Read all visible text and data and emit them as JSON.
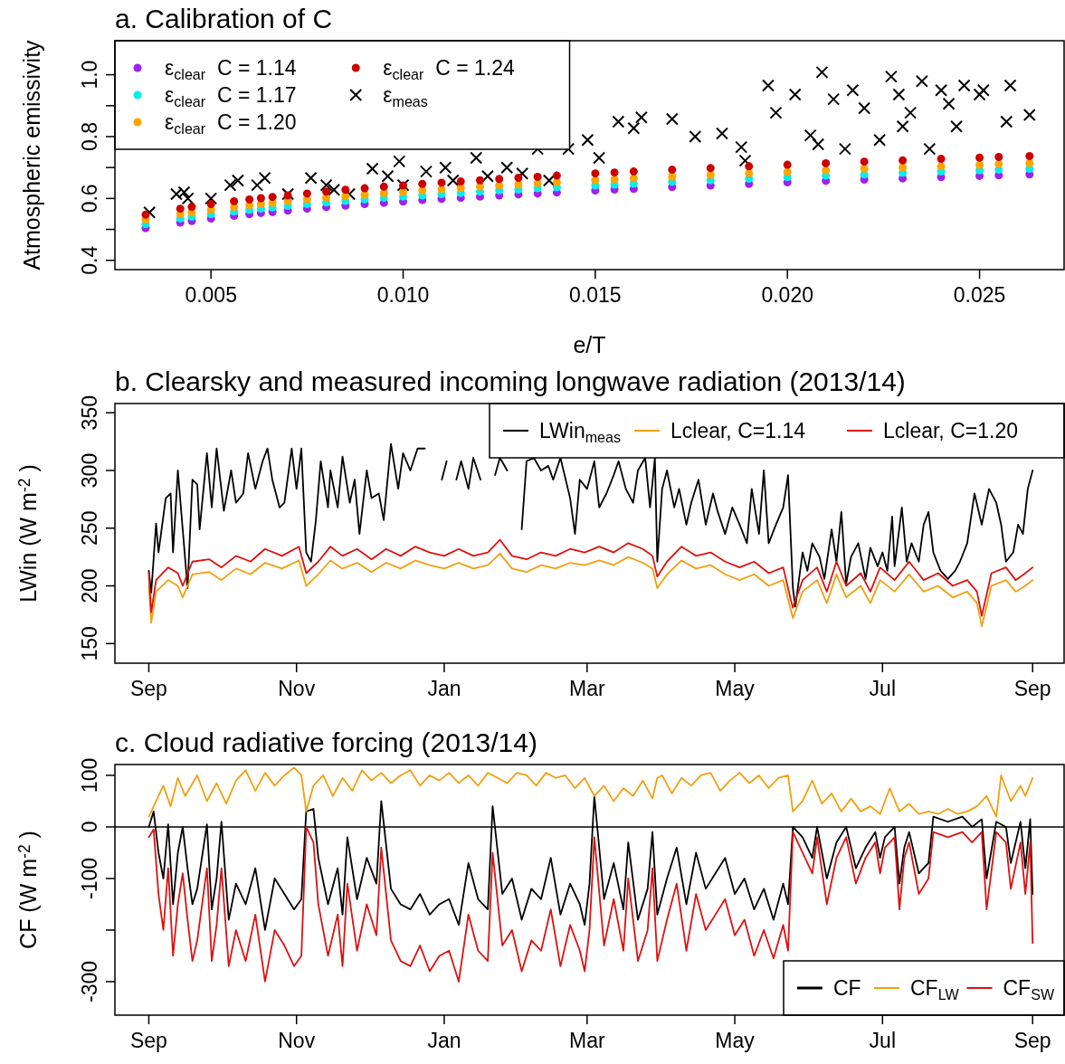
{
  "chart_data": [
    {
      "type": "scatter",
      "title": "a. Calibration of C",
      "xlabel": "e/T",
      "ylabel": "Atmospheric emissivity",
      "xlim": [
        0.0025,
        0.0272
      ],
      "ylim": [
        0.37,
        1.11
      ],
      "xticks": [
        0.005,
        {
          "value": 0.01,
          "label": "0.010"
        },
        0.015,
        {
          "value": 0.02,
          "label": "0.020"
        },
        0.025
      ],
      "yticks": [
        0.4,
        {
          "value": 0.5,
          "label": null
        },
        0.6,
        {
          "value": 0.7,
          "label": null
        },
        0.8,
        {
          "value": 0.9,
          "label": null
        },
        {
          "value": 1,
          "label": "1.0"
        }
      ],
      "legend": "top left",
      "marker": "circle",
      "x": [
        0.0033,
        0.0042,
        0.0045,
        0.005,
        0.0056,
        0.006,
        0.0063,
        0.0066,
        0.007,
        0.0075,
        0.008,
        0.0085,
        0.009,
        0.0095,
        0.01,
        0.0105,
        0.011,
        0.0115,
        0.012,
        0.0125,
        0.013,
        0.0135,
        0.014,
        0.015,
        0.0155,
        0.016,
        0.017,
        0.018,
        0.019,
        0.02,
        0.021,
        0.022,
        0.023,
        0.024,
        0.025,
        0.0255,
        0.0263
      ],
      "series": [
        {
          "name": "ε$_{clear}$  C = 1.14",
          "color": "#a020f0",
          "values": [
            0.504,
            0.522,
            0.527,
            0.535,
            0.544,
            0.549,
            0.553,
            0.556,
            0.561,
            0.567,
            0.572,
            0.577,
            0.582,
            0.586,
            0.59,
            0.595,
            0.599,
            0.602,
            0.606,
            0.61,
            0.613,
            0.616,
            0.619,
            0.626,
            0.629,
            0.631,
            0.637,
            0.642,
            0.647,
            0.652,
            0.657,
            0.661,
            0.665,
            0.669,
            0.673,
            0.675,
            0.678
          ]
        },
        {
          "name": "ε$_{clear}$  C = 1.17",
          "color": "#00eeee",
          "values": [
            0.517,
            0.535,
            0.541,
            0.549,
            0.558,
            0.563,
            0.567,
            0.571,
            0.576,
            0.582,
            0.587,
            0.592,
            0.597,
            0.602,
            0.606,
            0.61,
            0.614,
            0.618,
            0.622,
            0.626,
            0.629,
            0.633,
            0.636,
            0.642,
            0.645,
            0.648,
            0.654,
            0.659,
            0.664,
            0.669,
            0.674,
            0.678,
            0.683,
            0.687,
            0.691,
            0.693,
            0.696
          ]
        },
        {
          "name": "ε$_{clear}$  C = 1.20",
          "color": "#ffa500",
          "values": [
            0.531,
            0.549,
            0.555,
            0.563,
            0.572,
            0.578,
            0.582,
            0.586,
            0.591,
            0.597,
            0.602,
            0.607,
            0.612,
            0.617,
            0.621,
            0.626,
            0.63,
            0.634,
            0.638,
            0.642,
            0.645,
            0.649,
            0.652,
            0.659,
            0.662,
            0.665,
            0.67,
            0.676,
            0.681,
            0.686,
            0.691,
            0.696,
            0.7,
            0.704,
            0.708,
            0.711,
            0.714
          ]
        },
        {
          "name": "ε$_{clear}$  C = 1.24",
          "color": "#cc0000",
          "values": [
            0.548,
            0.567,
            0.573,
            0.582,
            0.591,
            0.597,
            0.601,
            0.605,
            0.61,
            0.616,
            0.622,
            0.628,
            0.633,
            0.638,
            0.642,
            0.647,
            0.651,
            0.655,
            0.659,
            0.663,
            0.667,
            0.67,
            0.674,
            0.681,
            0.684,
            0.687,
            0.693,
            0.698,
            0.704,
            0.709,
            0.714,
            0.719,
            0.723,
            0.728,
            0.732,
            0.734,
            0.737
          ]
        },
        {
          "name": "ε$_{meas}$",
          "color": "#000000",
          "marker": "cross",
          "x": [
            0.0034,
            0.0041,
            0.0043,
            0.0044,
            0.005,
            0.0055,
            0.0057,
            0.0062,
            0.0064,
            0.007,
            0.0076,
            0.008,
            0.0082,
            0.0086,
            0.0092,
            0.0096,
            0.0099,
            0.01,
            0.0106,
            0.0111,
            0.0113,
            0.0119,
            0.0122,
            0.0127,
            0.0131,
            0.0135,
            0.0138,
            0.0143,
            0.0148,
            0.0151,
            0.0156,
            0.016,
            0.0162,
            0.017,
            0.0176,
            0.0183,
            0.0188,
            0.0189,
            0.0195,
            0.0197,
            0.0202,
            0.0206,
            0.0208,
            0.0209,
            0.0212,
            0.0215,
            0.0217,
            0.022,
            0.0224,
            0.0227,
            0.0229,
            0.023,
            0.0232,
            0.0235,
            0.0237,
            0.024,
            0.0242,
            0.0244,
            0.0246,
            0.025,
            0.0251,
            0.0257,
            0.0258,
            0.0263
          ],
          "values": [
            0.555,
            0.614,
            0.62,
            0.6,
            0.6,
            0.643,
            0.658,
            0.643,
            0.666,
            0.614,
            0.666,
            0.643,
            0.628,
            0.614,
            0.696,
            0.672,
            0.72,
            0.643,
            0.687,
            0.7,
            0.658,
            0.731,
            0.672,
            0.7,
            0.681,
            0.76,
            0.658,
            0.76,
            0.789,
            0.731,
            0.848,
            0.827,
            0.862,
            0.857,
            0.8,
            0.81,
            0.766,
            0.722,
            0.965,
            0.877,
            0.936,
            0.804,
            0.775,
            1.008,
            0.921,
            0.76,
            0.95,
            0.892,
            0.789,
            0.994,
            0.936,
            0.833,
            0.877,
            0.979,
            0.76,
            0.95,
            0.906,
            0.833,
            0.965,
            0.936,
            0.95,
            0.848,
            0.965,
            0.87
          ]
        }
      ]
    },
    {
      "type": "line",
      "title": "b. Clearsky and measured incoming longwave radiation (2013/14)",
      "ylabel": "LWin (W m$^{-2}$ )",
      "xlim": [
        "2013-08-18",
        "2014-09-14"
      ],
      "ylim": [
        133,
        358
      ],
      "xticks": [
        {
          "value": "2013-09-01",
          "label": "Sep"
        },
        {
          "value": "2013-11-01",
          "label": "Nov"
        },
        {
          "value": "2014-01-01",
          "label": "Jan"
        },
        {
          "value": "2014-03-01",
          "label": "Mar"
        },
        {
          "value": "2014-05-01",
          "label": "May"
        },
        {
          "value": "2014-07-01",
          "label": "Jul"
        },
        {
          "value": "2014-09-01",
          "label": "Sep"
        }
      ],
      "yticks": [
        150,
        200,
        250,
        300,
        350
      ],
      "legend": "top right",
      "marker": "none",
      "series": [
        {
          "name": "LWin$_{meas}$",
          "color": "#000000",
          "x": [
            "2013-09-01",
            "2013-09-02",
            "2013-09-04",
            "2013-09-05",
            "2013-09-08",
            "2013-09-10",
            "2013-09-11",
            "2013-09-13",
            "2013-09-15",
            "2013-09-17",
            "2013-09-19",
            "2013-09-21",
            "2013-09-22",
            "2013-09-25",
            "2013-09-27",
            "2013-09-29",
            "2013-10-02",
            "2013-10-05",
            "2013-10-07",
            "2013-10-10",
            "2013-10-12",
            "2013-10-15",
            "2013-10-18",
            "2013-10-20",
            "2013-10-22",
            "2013-10-25",
            "2013-10-27",
            "2013-10-30",
            "2013-11-01",
            "2013-11-03",
            "2013-11-05",
            "2013-11-07",
            "2013-11-09",
            "2013-11-11",
            "2013-11-14",
            "2013-11-15",
            "2013-11-18",
            "2013-11-20",
            "2013-11-23",
            "2013-11-25",
            "2013-11-27",
            "2013-11-30",
            "2013-12-02",
            "2013-12-05",
            "2013-12-07",
            "2013-12-10",
            "2013-12-13",
            "2013-12-15",
            "2013-12-18",
            "2013-12-21",
            "2013-12-24",
            "2013-12-27",
            "2013-12-30",
            "2013-12-31",
            "2014-01-02",
            "2014-01-04",
            "2014-01-06",
            "2014-01-08",
            "2014-01-11",
            "2014-01-13",
            "2014-01-16",
            "2014-01-19",
            "2014-01-22",
            "2014-01-24",
            "2014-01-27",
            "2014-01-30",
            "2014-02-02",
            "2014-02-04",
            "2014-02-07",
            "2014-02-10",
            "2014-02-13",
            "2014-02-15",
            "2014-02-18",
            "2014-02-22",
            "2014-02-24",
            "2014-02-26",
            "2014-03-01",
            "2014-03-04",
            "2014-03-06",
            "2014-03-09",
            "2014-03-12",
            "2014-03-14",
            "2014-03-17",
            "2014-03-20",
            "2014-03-22",
            "2014-03-25",
            "2014-03-27",
            "2014-03-29",
            "2014-03-30",
            "2014-04-01",
            "2014-04-03",
            "2014-04-06",
            "2014-04-08",
            "2014-04-11",
            "2014-04-13",
            "2014-04-16",
            "2014-04-19",
            "2014-04-22",
            "2014-04-24",
            "2014-04-27",
            "2014-04-30",
            "2014-05-03",
            "2014-05-06",
            "2014-05-08",
            "2014-05-11",
            "2014-05-13",
            "2014-05-15",
            "2014-05-18",
            "2014-05-21",
            "2014-05-23",
            "2014-05-25",
            "2014-05-26",
            "2014-05-29",
            "2014-05-31",
            "2014-06-02",
            "2014-06-05",
            "2014-06-07",
            "2014-06-10",
            "2014-06-12",
            "2014-06-14",
            "2014-06-16",
            "2014-06-18",
            "2014-06-21",
            "2014-06-24",
            "2014-06-26",
            "2014-06-29",
            "2014-07-01",
            "2014-07-03",
            "2014-07-05",
            "2014-07-06",
            "2014-07-09",
            "2014-07-11",
            "2014-07-13",
            "2014-07-16",
            "2014-07-18",
            "2014-07-20",
            "2014-07-22",
            "2014-07-25",
            "2014-07-28",
            "2014-07-31",
            "2014-08-02",
            "2014-08-05",
            "2014-08-08",
            "2014-08-11",
            "2014-08-14",
            "2014-08-17",
            "2014-08-19",
            "2014-08-21",
            "2014-08-24",
            "2014-08-26",
            "2014-08-28",
            "2014-08-30",
            "2014-09-01"
          ],
          "values": [
            213,
            194,
            254,
            229,
            276,
            280,
            229,
            300,
            249,
            198,
            292,
            288,
            249,
            315,
            268,
            319,
            265,
            300,
            272,
            280,
            315,
            284,
            308,
            319,
            292,
            268,
            272,
            319,
            284,
            319,
            229,
            221,
            257,
            308,
            268,
            300,
            268,
            312,
            272,
            292,
            245,
            300,
            276,
            280,
            257,
            323,
            284,
            315,
            300,
            319,
            319,
            null,
            null,
            292,
            308,
            null,
            292,
            308,
            284,
            311,
            292,
            null,
            296,
            311,
            300,
            null,
            249,
            308,
            311,
            300,
            304,
            292,
            311,
            276,
            245,
            292,
            284,
            308,
            268,
            280,
            296,
            308,
            284,
            272,
            300,
            311,
            268,
            311,
            221,
            284,
            300,
            268,
            284,
            253,
            272,
            292,
            253,
            280,
            264,
            245,
            268,
            253,
            237,
            284,
            245,
            300,
            237,
            253,
            268,
            296,
            198,
            182,
            229,
            213,
            237,
            225,
            206,
            249,
            221,
            264,
            202,
            225,
            237,
            206,
            233,
            217,
            229,
            213,
            260,
            217,
            268,
            221,
            237,
            221,
            253,
            264,
            229,
            213,
            206,
            213,
            221,
            237,
            280,
            253,
            284,
            272,
            253,
            221,
            229,
            253,
            245,
            284,
            300
          ]
        },
        {
          "name": "Lclear, C=1.14",
          "color": "#f0a010",
          "x": [
            "2013-09-01",
            "2013-09-02",
            "2013-09-04",
            "2013-09-09",
            "2013-09-13",
            "2013-09-15",
            "2013-09-19",
            "2013-09-26",
            "2013-10-01",
            "2013-10-07",
            "2013-10-13",
            "2013-10-19",
            "2013-10-26",
            "2013-11-02",
            "2013-11-05",
            "2013-11-10",
            "2013-11-15",
            "2013-11-20",
            "2013-11-26",
            "2013-12-02",
            "2013-12-08",
            "2013-12-14",
            "2013-12-20",
            "2013-12-26",
            "2014-01-01",
            "2014-01-07",
            "2014-01-13",
            "2014-01-19",
            "2014-01-24",
            "2014-01-29",
            "2014-02-04",
            "2014-02-10",
            "2014-02-16",
            "2014-02-22",
            "2014-02-28",
            "2014-03-06",
            "2014-03-12",
            "2014-03-18",
            "2014-03-24",
            "2014-03-28",
            "2014-03-30",
            "2014-04-03",
            "2014-04-09",
            "2014-04-15",
            "2014-04-21",
            "2014-04-27",
            "2014-05-03",
            "2014-05-09",
            "2014-05-15",
            "2014-05-21",
            "2014-05-24",
            "2014-05-25",
            "2014-05-29",
            "2014-06-04",
            "2014-06-08",
            "2014-06-12",
            "2014-06-16",
            "2014-06-22",
            "2014-06-26",
            "2014-06-30",
            "2014-07-06",
            "2014-07-12",
            "2014-07-18",
            "2014-07-24",
            "2014-07-30",
            "2014-08-05",
            "2014-08-09",
            "2014-08-11",
            "2014-08-15",
            "2014-08-21",
            "2014-08-25",
            "2014-08-29",
            "2014-09-01"
          ],
          "values": [
            200,
            168,
            195,
            205,
            200,
            190,
            210,
            212,
            205,
            215,
            210,
            220,
            215,
            222,
            200,
            210,
            222,
            215,
            220,
            212,
            220,
            215,
            222,
            218,
            215,
            220,
            215,
            218,
            228,
            215,
            212,
            218,
            215,
            220,
            218,
            222,
            218,
            225,
            220,
            215,
            198,
            210,
            222,
            215,
            218,
            210,
            205,
            210,
            200,
            205,
            180,
            172,
            195,
            205,
            185,
            210,
            190,
            200,
            185,
            205,
            195,
            210,
            195,
            200,
            190,
            195,
            185,
            165,
            200,
            205,
            195,
            200,
            205
          ]
        },
        {
          "name": "Lclear, C=1.20",
          "color": "#dd1111",
          "x": [
            "2013-09-01",
            "2013-09-02",
            "2013-09-04",
            "2013-09-09",
            "2013-09-13",
            "2013-09-15",
            "2013-09-19",
            "2013-09-26",
            "2013-10-01",
            "2013-10-07",
            "2013-10-13",
            "2013-10-19",
            "2013-10-26",
            "2013-11-02",
            "2013-11-05",
            "2013-11-10",
            "2013-11-15",
            "2013-11-20",
            "2013-11-26",
            "2013-12-02",
            "2013-12-08",
            "2013-12-14",
            "2013-12-20",
            "2013-12-26",
            "2014-01-01",
            "2014-01-07",
            "2014-01-13",
            "2014-01-19",
            "2014-01-24",
            "2014-01-29",
            "2014-02-04",
            "2014-02-10",
            "2014-02-16",
            "2014-02-22",
            "2014-02-28",
            "2014-03-06",
            "2014-03-12",
            "2014-03-18",
            "2014-03-24",
            "2014-03-28",
            "2014-03-30",
            "2014-04-03",
            "2014-04-09",
            "2014-04-15",
            "2014-04-21",
            "2014-04-27",
            "2014-05-03",
            "2014-05-09",
            "2014-05-15",
            "2014-05-21",
            "2014-05-24",
            "2014-05-25",
            "2014-05-29",
            "2014-06-04",
            "2014-06-08",
            "2014-06-12",
            "2014-06-16",
            "2014-06-22",
            "2014-06-26",
            "2014-06-30",
            "2014-07-06",
            "2014-07-12",
            "2014-07-18",
            "2014-07-24",
            "2014-07-30",
            "2014-08-05",
            "2014-08-09",
            "2014-08-11",
            "2014-08-15",
            "2014-08-21",
            "2014-08-25",
            "2014-08-29",
            "2014-09-01"
          ],
          "values": [
            211,
            177,
            205,
            216,
            211,
            200,
            221,
            223,
            216,
            226,
            221,
            232,
            226,
            234,
            211,
            221,
            234,
            226,
            232,
            223,
            232,
            226,
            234,
            229,
            226,
            232,
            226,
            229,
            240,
            226,
            223,
            229,
            226,
            232,
            229,
            234,
            229,
            237,
            232,
            226,
            208,
            221,
            234,
            226,
            229,
            221,
            216,
            221,
            211,
            216,
            189,
            181,
            205,
            216,
            195,
            221,
            200,
            211,
            195,
            216,
            205,
            221,
            205,
            211,
            200,
            205,
            195,
            174,
            211,
            216,
            205,
            211,
            216
          ]
        }
      ]
    },
    {
      "type": "line",
      "title": "c. Cloud radiative forcing (2013/14)",
      "ylabel": "CF (W m$^{-2}$ )",
      "xlim": [
        "2013-08-18",
        "2014-09-14"
      ],
      "ylim": [
        -365,
        121
      ],
      "xticks": [
        {
          "value": "2013-09-01",
          "label": "Sep"
        },
        {
          "value": "2013-11-01",
          "label": "Nov"
        },
        {
          "value": "2014-01-01",
          "label": "Jan"
        },
        {
          "value": "2014-03-01",
          "label": "Mar"
        },
        {
          "value": "2014-05-01",
          "label": "May"
        },
        {
          "value": "2014-07-01",
          "label": "Jul"
        },
        {
          "value": "2014-09-01",
          "label": "Sep"
        }
      ],
      "yticks": [
        100,
        0,
        -100,
        {
          "value": -200,
          "label": null
        },
        -300
      ],
      "legend": "bottom right",
      "marker": "none",
      "ref_lines": [
        {
          "axis": "y",
          "value": 0,
          "color": "#000000"
        }
      ],
      "series": [
        {
          "name": "CF",
          "color": "#000000",
          "x": [
            "2013-09-01",
            "2013-09-03",
            "2013-09-05",
            "2013-09-07",
            "2013-09-09",
            "2013-09-11",
            "2013-09-13",
            "2013-09-15",
            "2013-09-17",
            "2013-09-19",
            "2013-09-21",
            "2013-09-25",
            "2013-09-27",
            "2013-09-29",
            "2013-10-01",
            "2013-10-04",
            "2013-10-07",
            "2013-10-11",
            "2013-10-15",
            "2013-10-19",
            "2013-10-23",
            "2013-10-27",
            "2013-10-31",
            "2013-11-03",
            "2013-11-05",
            "2013-11-08",
            "2013-11-10",
            "2013-11-14",
            "2013-11-18",
            "2013-11-20",
            "2013-11-22",
            "2013-11-26",
            "2013-11-30",
            "2013-12-04",
            "2013-12-06",
            "2013-12-10",
            "2013-12-14",
            "2013-12-18",
            "2013-12-22",
            "2013-12-26",
            "2013-12-30",
            "2014-01-03",
            "2014-01-07",
            "2014-01-11",
            "2014-01-15",
            "2014-01-19",
            "2014-01-21",
            "2014-01-25",
            "2014-01-29",
            "2014-02-02",
            "2014-02-06",
            "2014-02-10",
            "2014-02-14",
            "2014-02-18",
            "2014-02-22",
            "2014-02-26",
            "2014-02-28",
            "2014-03-02",
            "2014-03-04",
            "2014-03-08",
            "2014-03-12",
            "2014-03-16",
            "2014-03-18",
            "2014-03-22",
            "2014-03-26",
            "2014-03-28",
            "2014-03-30",
            "2014-04-03",
            "2014-04-07",
            "2014-04-11",
            "2014-04-15",
            "2014-04-19",
            "2014-04-23",
            "2014-04-27",
            "2014-05-01",
            "2014-05-05",
            "2014-05-09",
            "2014-05-13",
            "2014-05-17",
            "2014-05-21",
            "2014-05-23",
            "2014-05-25",
            "2014-05-29",
            "2014-06-02",
            "2014-06-04",
            "2014-06-08",
            "2014-06-12",
            "2014-06-16",
            "2014-06-20",
            "2014-06-24",
            "2014-06-28",
            "2014-06-30",
            "2014-07-02",
            "2014-07-06",
            "2014-07-08",
            "2014-07-10",
            "2014-07-12",
            "2014-07-16",
            "2014-07-20",
            "2014-07-22",
            "2014-07-28",
            "2014-08-03",
            "2014-08-07",
            "2014-08-11",
            "2014-08-13",
            "2014-08-17",
            "2014-08-21",
            "2014-08-23",
            "2014-08-27",
            "2014-08-29",
            "2014-08-31",
            "2014-09-01"
          ],
          "values": [
            0,
            30,
            -50,
            -100,
            5,
            -150,
            -50,
            0,
            -80,
            -150,
            -120,
            5,
            -160,
            -100,
            10,
            -180,
            -110,
            -150,
            -80,
            -200,
            -100,
            -130,
            -160,
            -140,
            30,
            35,
            -60,
            -150,
            -80,
            -170,
            -20,
            -140,
            -60,
            -110,
            50,
            -120,
            -150,
            -160,
            -130,
            -170,
            -150,
            -140,
            -190,
            -70,
            -140,
            -160,
            40,
            -130,
            -100,
            -180,
            -120,
            -140,
            -60,
            -170,
            -110,
            -150,
            -190,
            -110,
            60,
            -140,
            -70,
            -160,
            -30,
            -180,
            -120,
            -10,
            -170,
            -100,
            -40,
            -150,
            -50,
            -120,
            -90,
            -60,
            -130,
            -100,
            -160,
            -120,
            -180,
            -110,
            -150,
            0,
            -20,
            -60,
            0,
            -100,
            -30,
            0,
            -80,
            -40,
            -10,
            -60,
            -20,
            0,
            -110,
            -40,
            -10,
            -90,
            -70,
            20,
            10,
            20,
            0,
            15,
            -100,
            10,
            0,
            -70,
            10,
            -80,
            15,
            -130
          ]
        },
        {
          "name": "CF$_{LW}$",
          "color": "#f0a010",
          "x": [
            "2013-09-01",
            "2013-09-04",
            "2013-09-07",
            "2013-09-10",
            "2013-09-13",
            "2013-09-16",
            "2013-09-21",
            "2013-09-25",
            "2013-09-29",
            "2013-10-03",
            "2013-10-07",
            "2013-10-11",
            "2013-10-15",
            "2013-10-19",
            "2013-10-23",
            "2013-10-27",
            "2013-10-31",
            "2013-11-03",
            "2013-11-05",
            "2013-11-08",
            "2013-11-12",
            "2013-11-16",
            "2013-11-20",
            "2013-11-24",
            "2013-11-28",
            "2013-12-02",
            "2013-12-06",
            "2013-12-10",
            "2013-12-14",
            "2013-12-18",
            "2013-12-22",
            "2013-12-26",
            "2013-12-30",
            "2014-01-03",
            "2014-01-07",
            "2014-01-11",
            "2014-01-15",
            "2014-01-19",
            "2014-01-23",
            "2014-01-27",
            "2014-01-31",
            "2014-02-04",
            "2014-02-08",
            "2014-02-12",
            "2014-02-16",
            "2014-02-20",
            "2014-02-24",
            "2014-02-28",
            "2014-03-04",
            "2014-03-08",
            "2014-03-12",
            "2014-03-16",
            "2014-03-20",
            "2014-03-24",
            "2014-03-28",
            "2014-03-30",
            "2014-04-01",
            "2014-04-05",
            "2014-04-09",
            "2014-04-13",
            "2014-04-17",
            "2014-04-21",
            "2014-04-25",
            "2014-04-29",
            "2014-05-03",
            "2014-05-07",
            "2014-05-11",
            "2014-05-15",
            "2014-05-19",
            "2014-05-23",
            "2014-05-25",
            "2014-05-29",
            "2014-06-02",
            "2014-06-06",
            "2014-06-10",
            "2014-06-14",
            "2014-06-18",
            "2014-06-22",
            "2014-06-26",
            "2014-06-30",
            "2014-07-04",
            "2014-07-08",
            "2014-07-12",
            "2014-07-16",
            "2014-07-20",
            "2014-07-24",
            "2014-07-28",
            "2014-08-01",
            "2014-08-05",
            "2014-08-09",
            "2014-08-13",
            "2014-08-17",
            "2014-08-19",
            "2014-08-23",
            "2014-08-27",
            "2014-08-29",
            "2014-09-01"
          ],
          "values": [
            20,
            50,
            80,
            40,
            95,
            60,
            100,
            50,
            85,
            45,
            90,
            110,
            70,
            105,
            80,
            100,
            115,
            100,
            30,
            80,
            100,
            60,
            95,
            70,
            110,
            90,
            105,
            85,
            100,
            110,
            80,
            100,
            90,
            105,
            85,
            100,
            80,
            105,
            95,
            85,
            105,
            100,
            80,
            105,
            95,
            100,
            75,
            95,
            60,
            80,
            50,
            75,
            60,
            90,
            55,
            95,
            100,
            65,
            95,
            80,
            100,
            105,
            70,
            90,
            105,
            85,
            100,
            75,
            95,
            100,
            30,
            50,
            90,
            45,
            65,
            30,
            55,
            30,
            40,
            25,
            75,
            30,
            45,
            25,
            30,
            25,
            35,
            25,
            30,
            40,
            60,
            20,
            100,
            50,
            80,
            60,
            95
          ]
        },
        {
          "name": "CF$_{SW}$",
          "color": "#dd1111",
          "x": [
            "2013-09-01",
            "2013-09-03",
            "2013-09-05",
            "2013-09-07",
            "2013-09-09",
            "2013-09-11",
            "2013-09-13",
            "2013-09-15",
            "2013-09-17",
            "2013-09-19",
            "2013-09-21",
            "2013-09-25",
            "2013-09-27",
            "2013-09-29",
            "2013-10-01",
            "2013-10-04",
            "2013-10-07",
            "2013-10-11",
            "2013-10-15",
            "2013-10-19",
            "2013-10-23",
            "2013-10-27",
            "2013-10-31",
            "2013-11-03",
            "2013-11-05",
            "2013-11-08",
            "2013-11-10",
            "2013-11-14",
            "2013-11-18",
            "2013-11-20",
            "2013-11-22",
            "2013-11-26",
            "2013-11-30",
            "2013-12-04",
            "2013-12-06",
            "2013-12-10",
            "2013-12-14",
            "2013-12-18",
            "2013-12-22",
            "2013-12-26",
            "2013-12-30",
            "2014-01-03",
            "2014-01-07",
            "2014-01-11",
            "2014-01-15",
            "2014-01-19",
            "2014-01-21",
            "2014-01-25",
            "2014-01-29",
            "2014-02-02",
            "2014-02-06",
            "2014-02-10",
            "2014-02-14",
            "2014-02-18",
            "2014-02-22",
            "2014-02-26",
            "2014-02-28",
            "2014-03-02",
            "2014-03-04",
            "2014-03-08",
            "2014-03-12",
            "2014-03-16",
            "2014-03-18",
            "2014-03-22",
            "2014-03-26",
            "2014-03-28",
            "2014-03-30",
            "2014-04-03",
            "2014-04-07",
            "2014-04-11",
            "2014-04-15",
            "2014-04-19",
            "2014-04-23",
            "2014-04-27",
            "2014-05-01",
            "2014-05-05",
            "2014-05-09",
            "2014-05-13",
            "2014-05-17",
            "2014-05-21",
            "2014-05-23",
            "2014-05-25",
            "2014-05-29",
            "2014-06-02",
            "2014-06-04",
            "2014-06-08",
            "2014-06-12",
            "2014-06-16",
            "2014-06-20",
            "2014-06-24",
            "2014-06-28",
            "2014-06-30",
            "2014-07-02",
            "2014-07-06",
            "2014-07-08",
            "2014-07-10",
            "2014-07-12",
            "2014-07-16",
            "2014-07-20",
            "2014-07-22",
            "2014-07-28",
            "2014-08-03",
            "2014-08-07",
            "2014-08-11",
            "2014-08-13",
            "2014-08-17",
            "2014-08-21",
            "2014-08-23",
            "2014-08-27",
            "2014-08-29",
            "2014-08-31",
            "2014-09-01"
          ],
          "values": [
            -20,
            -5,
            -130,
            -200,
            -80,
            -250,
            -150,
            -90,
            -180,
            -260,
            -220,
            -80,
            -260,
            -190,
            -80,
            -270,
            -200,
            -260,
            -170,
            -300,
            -200,
            -230,
            -270,
            -250,
            0,
            -30,
            -150,
            -250,
            -170,
            -270,
            -110,
            -240,
            -150,
            -210,
            -40,
            -220,
            -260,
            -270,
            -230,
            -280,
            -250,
            -240,
            -300,
            -170,
            -240,
            -260,
            -50,
            -230,
            -200,
            -280,
            -220,
            -240,
            -160,
            -270,
            -190,
            -240,
            -280,
            -200,
            -20,
            -230,
            -140,
            -240,
            -100,
            -260,
            -200,
            -80,
            -260,
            -180,
            -110,
            -240,
            -130,
            -200,
            -170,
            -140,
            -210,
            -180,
            -250,
            -200,
            -255,
            -190,
            -240,
            -10,
            -50,
            -90,
            -20,
            -150,
            -60,
            -20,
            -110,
            -60,
            -30,
            -90,
            -40,
            -20,
            -160,
            -60,
            -30,
            -130,
            -100,
            -10,
            -20,
            -10,
            -30,
            -10,
            -160,
            -10,
            -30,
            -120,
            -30,
            -130,
            -30,
            -225
          ]
        }
      ]
    }
  ]
}
